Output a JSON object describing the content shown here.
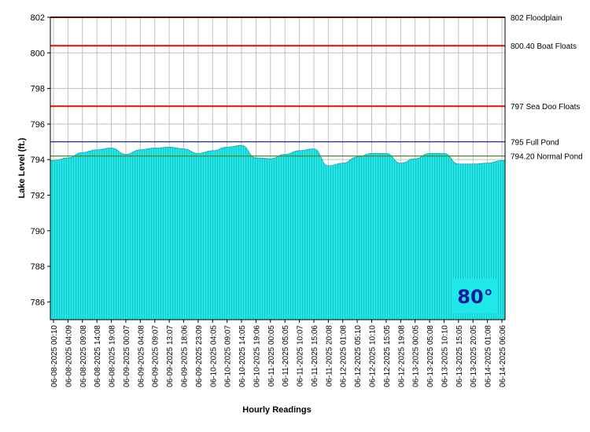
{
  "chart_data": {
    "type": "area",
    "ylabel": "Lake Level (ft.)",
    "xlabel": "Hourly Readings",
    "ylim": [
      785,
      802
    ],
    "yticks": [
      786,
      788,
      790,
      792,
      794,
      796,
      798,
      800,
      802
    ],
    "grid": true,
    "fill_color": "#1ee8ea",
    "x_labels": [
      "06-08-2025 00:10",
      "06-08-2025 04:09",
      "06-08-2025 09:08",
      "06-08-2025 14:08",
      "06-08-2025 19:08",
      "06-09-2025 00:07",
      "06-09-2025 04:08",
      "06-09-2025 09:07",
      "06-09-2025 13:07",
      "06-09-2025 18:06",
      "06-09-2025 23:09",
      "06-10-2025 04:05",
      "06-10-2025 09:07",
      "06-10-2025 14:05",
      "06-10-2025 19:06",
      "06-11-2025 00:05",
      "06-11-2025 05:05",
      "06-11-2025 10:07",
      "06-11-2025 15:06",
      "06-11-2025 20:08",
      "06-12-2025 01:08",
      "06-12-2025 05:10",
      "06-12-2025 10:10",
      "06-12-2025 15:05",
      "06-12-2025 19:08",
      "06-13-2025 00:05",
      "06-13-2025 05:08",
      "06-13-2025 10:10",
      "06-13-2025 15:05",
      "06-13-2025 20:05",
      "06-14-2025 01:08",
      "06-14-2025 06:06"
    ],
    "series": [
      {
        "values": [
          793.95,
          794.1,
          794.4,
          794.55,
          794.65,
          794.3,
          794.55,
          794.65,
          794.7,
          794.6,
          794.35,
          794.5,
          794.7,
          794.8,
          794.1,
          794.05,
          794.3,
          794.5,
          794.6,
          793.65,
          793.8,
          794.15,
          794.35,
          794.35,
          793.8,
          794.05,
          794.35,
          794.35,
          793.75,
          793.75,
          793.8,
          793.95
        ]
      }
    ],
    "reference_lines": [
      {
        "value": 802,
        "label": "802 Floodplain",
        "color": "#dd1111"
      },
      {
        "value": 800.4,
        "label": "800.40 Boat Floats",
        "color": "#dd1111"
      },
      {
        "value": 797,
        "label": "797 Sea Doo Floats",
        "color": "#dd1111"
      },
      {
        "value": 795,
        "label": "795 Full Pond",
        "color": "#1a2a8c"
      },
      {
        "value": 794.2,
        "label": "794.20 Normal Pond",
        "color": "#4a8a2a"
      }
    ],
    "annotation": "80°"
  }
}
